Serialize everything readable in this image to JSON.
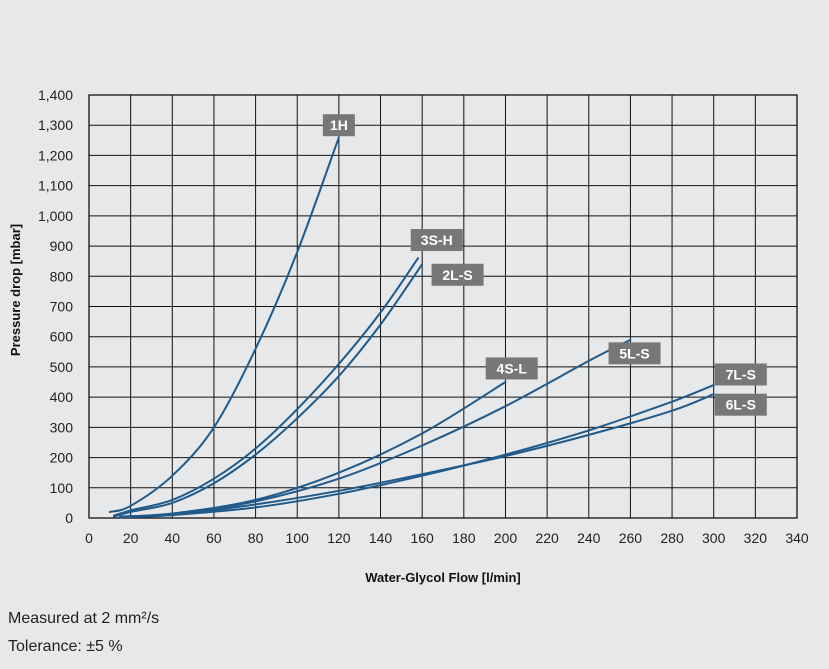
{
  "chart_data": {
    "type": "line",
    "xlabel": "Water-Glycol Flow [l/min]",
    "ylabel": "Pressure drop [mbar]",
    "xlim": [
      0,
      340
    ],
    "ylim": [
      0,
      1400
    ],
    "x_ticks": [
      "0",
      "20",
      "40",
      "60",
      "80",
      "100",
      "120",
      "140",
      "160",
      "180",
      "200",
      "220",
      "240",
      "260",
      "280",
      "300",
      "320",
      "340"
    ],
    "y_ticks": [
      "0",
      "100",
      "200",
      "300",
      "400",
      "500",
      "600",
      "700",
      "800",
      "900",
      "1,000",
      "1,100",
      "1,200",
      "1,300",
      "1,400"
    ],
    "grid": true,
    "line_color": "#1f5a8a",
    "label_color": "#777777",
    "series": [
      {
        "name": "1H",
        "x": [
          10,
          20,
          40,
          60,
          80,
          100,
          120
        ],
        "y": [
          20,
          40,
          140,
          300,
          560,
          880,
          1260
        ]
      },
      {
        "name": "3S-H",
        "x": [
          12,
          20,
          40,
          60,
          80,
          100,
          120,
          140,
          158
        ],
        "y": [
          8,
          25,
          60,
          130,
          230,
          360,
          510,
          680,
          860
        ]
      },
      {
        "name": "2L-S",
        "x": [
          12,
          20,
          40,
          60,
          80,
          100,
          120,
          140,
          160
        ],
        "y": [
          5,
          20,
          50,
          115,
          210,
          330,
          470,
          640,
          840
        ]
      },
      {
        "name": "4S-L",
        "x": [
          15,
          40,
          80,
          120,
          160,
          200
        ],
        "y": [
          5,
          15,
          60,
          150,
          280,
          450
        ]
      },
      {
        "name": "5L-S",
        "x": [
          15,
          40,
          80,
          120,
          160,
          200,
          240,
          260
        ],
        "y": [
          3,
          12,
          55,
          130,
          240,
          370,
          520,
          590
        ]
      },
      {
        "name": "7L-S",
        "x": [
          15,
          40,
          80,
          120,
          160,
          200,
          240,
          280,
          300
        ],
        "y": [
          3,
          10,
          35,
          80,
          140,
          210,
          290,
          385,
          440
        ]
      },
      {
        "name": "6L-S",
        "x": [
          15,
          40,
          80,
          120,
          160,
          200,
          240,
          280,
          300
        ],
        "y": [
          3,
          10,
          45,
          90,
          145,
          205,
          275,
          355,
          410
        ]
      }
    ],
    "annotations": [
      {
        "text": "1H",
        "x": 120,
        "y": 1300
      },
      {
        "text": "3S-H",
        "x": 167,
        "y": 920
      },
      {
        "text": "2L-S",
        "x": 177,
        "y": 805
      },
      {
        "text": "4S-L",
        "x": 203,
        "y": 495
      },
      {
        "text": "5L-S",
        "x": 262,
        "y": 545
      },
      {
        "text": "7L-S",
        "x": 313,
        "y": 475
      },
      {
        "text": "6L-S",
        "x": 313,
        "y": 375
      }
    ]
  },
  "notes": {
    "viscosity": "Measured at 2 mm²/s",
    "tolerance": "Tolerance: ±5 %"
  }
}
